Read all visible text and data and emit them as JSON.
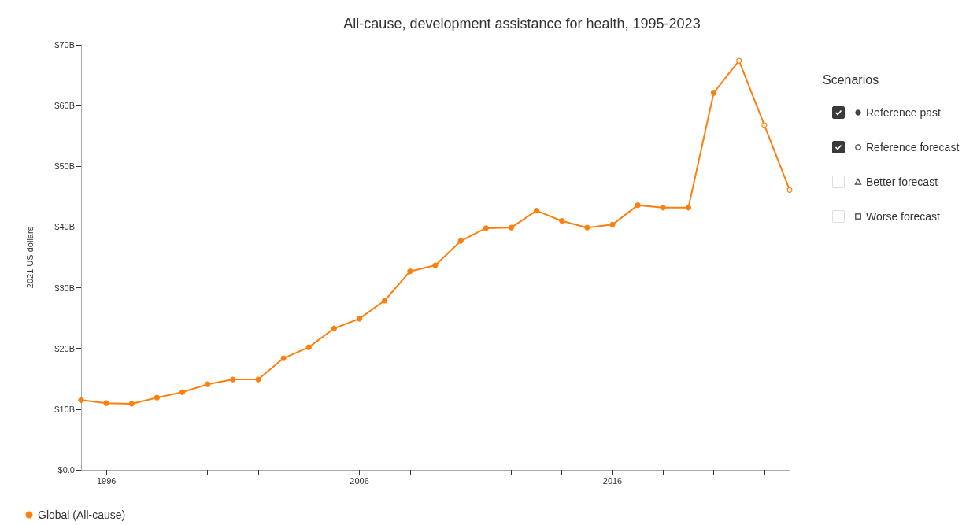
{
  "chart_data": {
    "type": "line",
    "title": "All-cause, development assistance for health, 1995-2023",
    "ylabel": "2021 US dollars",
    "legend_title": "Scenarios",
    "legend": "right",
    "xlim": [
      1995,
      2023
    ],
    "xticks": [
      1996,
      {
        "value": 1998,
        "label": null
      },
      {
        "value": 2000,
        "label": null
      },
      {
        "value": 2002,
        "label": null
      },
      {
        "value": 2004,
        "label": null
      },
      2006,
      {
        "value": 2008,
        "label": null
      },
      {
        "value": 2010,
        "label": null
      },
      {
        "value": 2012,
        "label": null
      },
      {
        "value": 2014,
        "label": null
      },
      2016,
      {
        "value": 2018,
        "label": null
      },
      {
        "value": 2020,
        "label": null
      },
      {
        "value": 2022,
        "label": null
      }
    ],
    "ylim": [
      0,
      70
    ],
    "yticks": [
      {
        "value": 0,
        "label": "$0.0"
      },
      {
        "value": 10,
        "label": "$10B"
      },
      {
        "value": 20,
        "label": "$20B"
      },
      {
        "value": 30,
        "label": "$30B"
      },
      {
        "value": 40,
        "label": "$40B"
      },
      {
        "value": 50,
        "label": "$50B"
      },
      {
        "value": 60,
        "label": "$60B"
      },
      {
        "value": 70,
        "label": "$70B"
      }
    ],
    "grid": false,
    "series": [
      {
        "name": "Reference past",
        "color": "#ff7f0e",
        "marker": "circle",
        "x": [
          1995,
          1996,
          1997,
          1998,
          1999,
          2000,
          2001,
          2002,
          2003,
          2004,
          2005,
          2006,
          2007,
          2008,
          2009,
          2010,
          2011,
          2012,
          2013,
          2014,
          2015,
          2016,
          2017,
          2018,
          2019,
          2020
        ],
        "values": [
          11.5,
          11.0,
          10.9,
          11.9,
          12.8,
          14.1,
          14.9,
          14.9,
          18.4,
          20.2,
          23.3,
          24.9,
          27.9,
          32.7,
          33.7,
          37.7,
          39.8,
          39.9,
          42.7,
          41.0,
          39.9,
          40.4,
          43.6,
          43.2,
          43.2,
          62.1
        ]
      },
      {
        "name": "Reference forecast",
        "color": "#ff7f0e",
        "marker": "circle",
        "x": [
          2020,
          2021,
          2022,
          2023
        ],
        "values": [
          62.1,
          67.4,
          56.8,
          46.1
        ]
      },
      {
        "name": "Better forecast",
        "marker": "triangle"
      },
      {
        "name": "Worse forecast",
        "marker": "square"
      }
    ],
    "annotations": [
      "Global (All-cause)"
    ]
  }
}
